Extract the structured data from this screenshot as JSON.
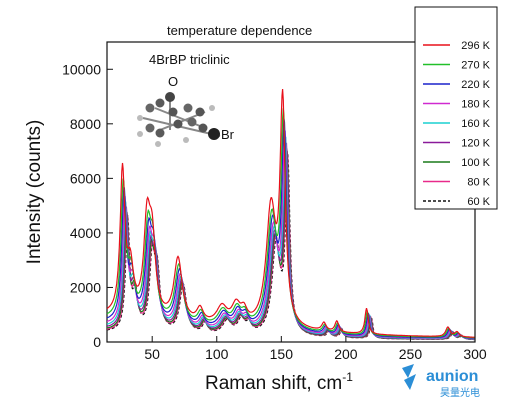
{
  "chart_data": {
    "type": "line",
    "title": "",
    "annotations": [
      "temperature dependence",
      "4BrBP triclinic"
    ],
    "molecule_labels": {
      "oxygen": "O",
      "bromine": "Br"
    },
    "xlabel": "Raman shift, cm",
    "xlabel_superscript": "-1",
    "ylabel": "Intensity (counts)",
    "xlim": [
      15,
      300
    ],
    "ylim": [
      0,
      11000
    ],
    "x_ticks": [
      50,
      100,
      150,
      200,
      250,
      300
    ],
    "y_ticks": [
      0,
      2000,
      4000,
      6000,
      8000,
      10000
    ],
    "grid": false,
    "legend_position": "top-right",
    "series": [
      {
        "name": "296 K",
        "color": "#e8101a",
        "dashed": false,
        "shift": 0,
        "amp": 1.0,
        "base": 900
      },
      {
        "name": "270 K",
        "color": "#22c02a",
        "dashed": false,
        "shift": 0.6,
        "amp": 0.93,
        "base": 760
      },
      {
        "name": "220 K",
        "color": "#1a22cc",
        "dashed": false,
        "shift": 1.2,
        "amp": 0.9,
        "base": 640
      },
      {
        "name": "180 K",
        "color": "#d02ad0",
        "dashed": false,
        "shift": 1.8,
        "amp": 0.86,
        "base": 540
      },
      {
        "name": "160 K",
        "color": "#1ad0d0",
        "dashed": false,
        "shift": 2.3,
        "amp": 0.84,
        "base": 460
      },
      {
        "name": "120 K",
        "color": "#8a1a9a",
        "dashed": false,
        "shift": 2.8,
        "amp": 0.82,
        "base": 400
      },
      {
        "name": "100 K",
        "color": "#1a7a1a",
        "dashed": false,
        "shift": 3.2,
        "amp": 0.8,
        "base": 350
      },
      {
        "name": "80 K",
        "color": "#e82a8a",
        "dashed": false,
        "shift": 3.6,
        "amp": 0.79,
        "base": 320
      },
      {
        "name": "60 K",
        "color": "#111111",
        "dashed": true,
        "shift": 4.0,
        "amp": 0.78,
        "base": 300
      }
    ],
    "peaks": [
      {
        "center": 27,
        "height": 5200,
        "width": 2.2
      },
      {
        "center": 33,
        "height": 1700,
        "width": 3.0
      },
      {
        "center": 46,
        "height": 3300,
        "width": 3.0
      },
      {
        "center": 50,
        "height": 2600,
        "width": 3.0
      },
      {
        "center": 70,
        "height": 2300,
        "width": 3.8
      },
      {
        "center": 87,
        "height": 500,
        "width": 3.0
      },
      {
        "center": 104,
        "height": 650,
        "width": 5.0
      },
      {
        "center": 115,
        "height": 700,
        "width": 4.0
      },
      {
        "center": 121,
        "height": 450,
        "width": 3.0
      },
      {
        "center": 142,
        "height": 4300,
        "width": 4.5
      },
      {
        "center": 151,
        "height": 8000,
        "width": 2.4
      },
      {
        "center": 183,
        "height": 300,
        "width": 2.0
      },
      {
        "center": 193,
        "height": 400,
        "width": 1.8
      },
      {
        "center": 216,
        "height": 950,
        "width": 1.5
      },
      {
        "center": 279,
        "height": 350,
        "width": 2.0
      },
      {
        "center": 286,
        "height": 180,
        "width": 2.0
      }
    ]
  },
  "watermark": {
    "brand": "aunion",
    "subtitle": "昊量光电"
  }
}
